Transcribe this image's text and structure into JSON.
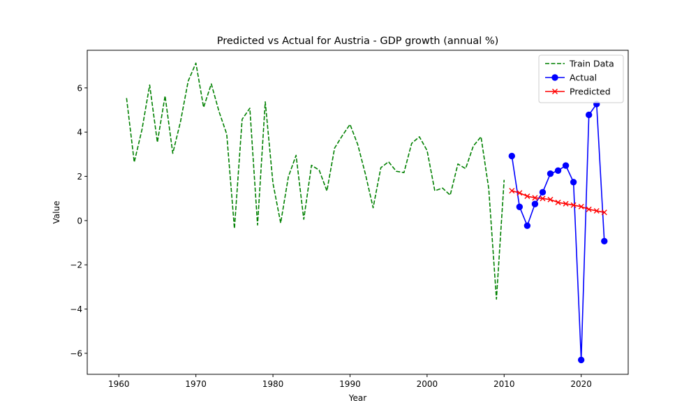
{
  "chart_data": {
    "type": "line",
    "title": "Predicted vs Actual for Austria - GDP growth (annual %)",
    "xlabel": "Year",
    "ylabel": "Value",
    "xlim": [
      1955.9,
      2026.1
    ],
    "ylim": [
      -6.95,
      7.7
    ],
    "x_ticks": [
      1960,
      1970,
      1980,
      1990,
      2000,
      2010,
      2020
    ],
    "y_ticks": [
      -6,
      -4,
      -2,
      0,
      2,
      4,
      6
    ],
    "x_tick_labels": [
      "1960",
      "1970",
      "1980",
      "1990",
      "2000",
      "2010",
      "2020"
    ],
    "y_tick_labels": [
      "−6",
      "−4",
      "−2",
      "0",
      "2",
      "4",
      "6"
    ],
    "grid": false,
    "legend_position": "upper right",
    "series": [
      {
        "name": "Train Data",
        "color": "#008000",
        "style": "dashed",
        "marker": "none",
        "x": [
          1961,
          1962,
          1963,
          1964,
          1965,
          1966,
          1967,
          1968,
          1969,
          1970,
          1971,
          1972,
          1973,
          1974,
          1975,
          1976,
          1977,
          1978,
          1979,
          1980,
          1981,
          1982,
          1983,
          1984,
          1985,
          1986,
          1987,
          1988,
          1989,
          1990,
          1991,
          1992,
          1993,
          1994,
          1995,
          1996,
          1997,
          1998,
          1999,
          2000,
          2001,
          2002,
          2003,
          2004,
          2005,
          2006,
          2007,
          2008,
          2009,
          2010
        ],
        "values": [
          5.54,
          2.64,
          4.11,
          6.13,
          3.54,
          5.64,
          3.04,
          4.47,
          6.31,
          7.12,
          5.12,
          6.18,
          4.93,
          3.91,
          -0.36,
          4.58,
          5.08,
          -0.2,
          5.37,
          1.69,
          -0.11,
          1.98,
          2.95,
          0.06,
          2.5,
          2.28,
          1.34,
          3.28,
          3.84,
          4.35,
          3.44,
          2.1,
          0.58,
          2.39,
          2.66,
          2.23,
          2.17,
          3.49,
          3.79,
          3.17,
          1.35,
          1.47,
          1.15,
          2.56,
          2.35,
          3.37,
          3.79,
          1.45,
          -3.55,
          1.84
        ]
      },
      {
        "name": "Actual",
        "color": "#0000ff",
        "style": "solid",
        "marker": "circle",
        "x": [
          2011,
          2012,
          2013,
          2014,
          2015,
          2016,
          2017,
          2018,
          2019,
          2020,
          2021,
          2022,
          2023
        ],
        "values": [
          2.92,
          0.62,
          -0.23,
          0.75,
          1.28,
          2.12,
          2.26,
          2.49,
          1.74,
          -6.3,
          4.78,
          5.27,
          -0.93
        ]
      },
      {
        "name": "Predicted",
        "color": "#ff0000",
        "style": "solid",
        "marker": "x",
        "x": [
          2011,
          2012,
          2013,
          2014,
          2015,
          2016,
          2017,
          2018,
          2019,
          2020,
          2021,
          2022,
          2023
        ],
        "values": [
          1.35,
          1.25,
          1.1,
          1.03,
          1.0,
          0.95,
          0.82,
          0.76,
          0.7,
          0.63,
          0.51,
          0.44,
          0.37
        ]
      }
    ]
  }
}
